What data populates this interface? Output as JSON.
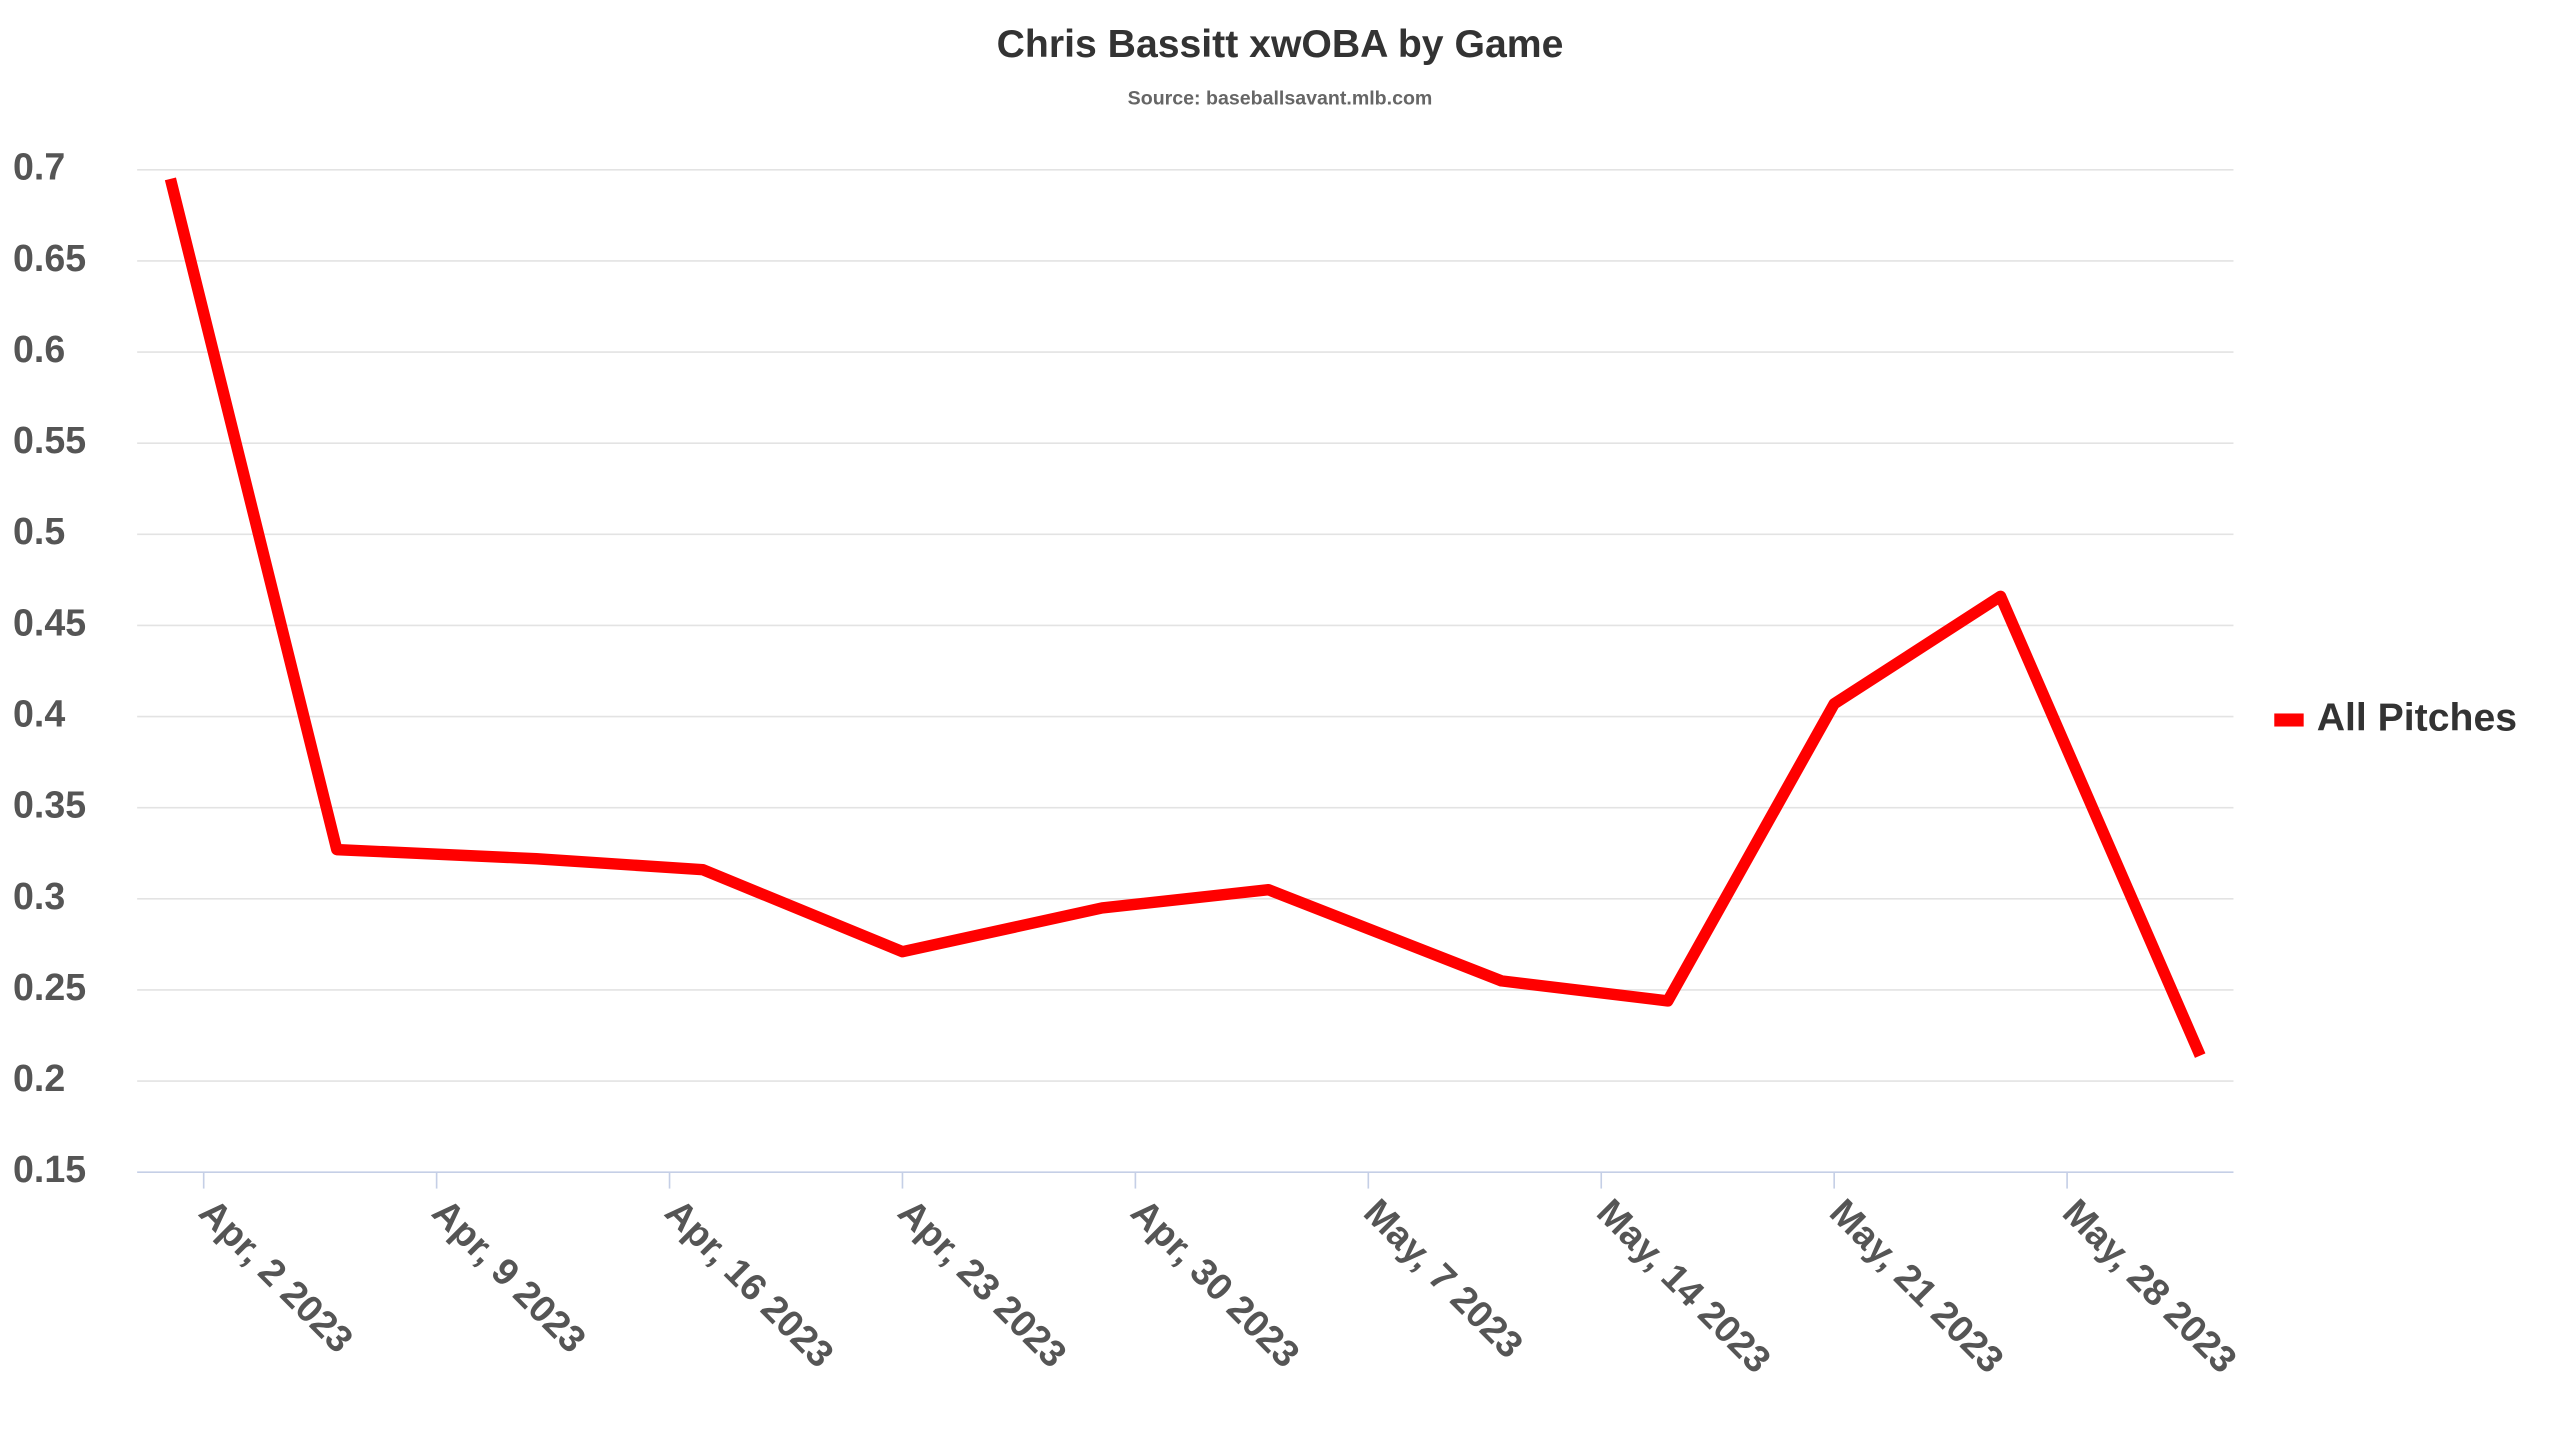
{
  "chart_data": {
    "type": "line",
    "title": "Chris Bassitt xwOBA by Game",
    "subtitle": "Source: baseballsavant.mlb.com",
    "x": [
      "2023-04-01",
      "2023-04-06",
      "2023-04-12",
      "2023-04-17",
      "2023-04-23",
      "2023-04-29",
      "2023-05-04",
      "2023-05-11",
      "2023-05-16",
      "2023-05-21",
      "2023-05-26",
      "2023-06-01"
    ],
    "series": [
      {
        "name": "All Pitches",
        "color": "#ff0000",
        "values": [
          0.695,
          0.327,
          0.322,
          0.316,
          0.271,
          0.295,
          0.305,
          0.255,
          0.244,
          0.407,
          0.466,
          0.214
        ]
      }
    ],
    "xlim": [
      "2023-03-31",
      "2023-06-02"
    ],
    "xticks": [
      {
        "value": "2023-04-02",
        "label": "Apr, 2 2023"
      },
      {
        "value": "2023-04-09",
        "label": "Apr, 9 2023"
      },
      {
        "value": "2023-04-16",
        "label": "Apr, 16 2023"
      },
      {
        "value": "2023-04-23",
        "label": "Apr, 23 2023"
      },
      {
        "value": "2023-04-30",
        "label": "Apr, 30 2023"
      },
      {
        "value": "2023-05-07",
        "label": "May, 7 2023"
      },
      {
        "value": "2023-05-14",
        "label": "May, 14 2023"
      },
      {
        "value": "2023-05-21",
        "label": "May, 21 2023"
      },
      {
        "value": "2023-05-28",
        "label": "May, 28 2023"
      }
    ],
    "ylim": [
      0.15,
      0.7
    ],
    "yticks": [
      0.15,
      0.2,
      0.25,
      0.3,
      0.35,
      0.4,
      0.45,
      0.5,
      0.55,
      0.6,
      0.65,
      0.7
    ],
    "grid": true,
    "legend": "right"
  }
}
